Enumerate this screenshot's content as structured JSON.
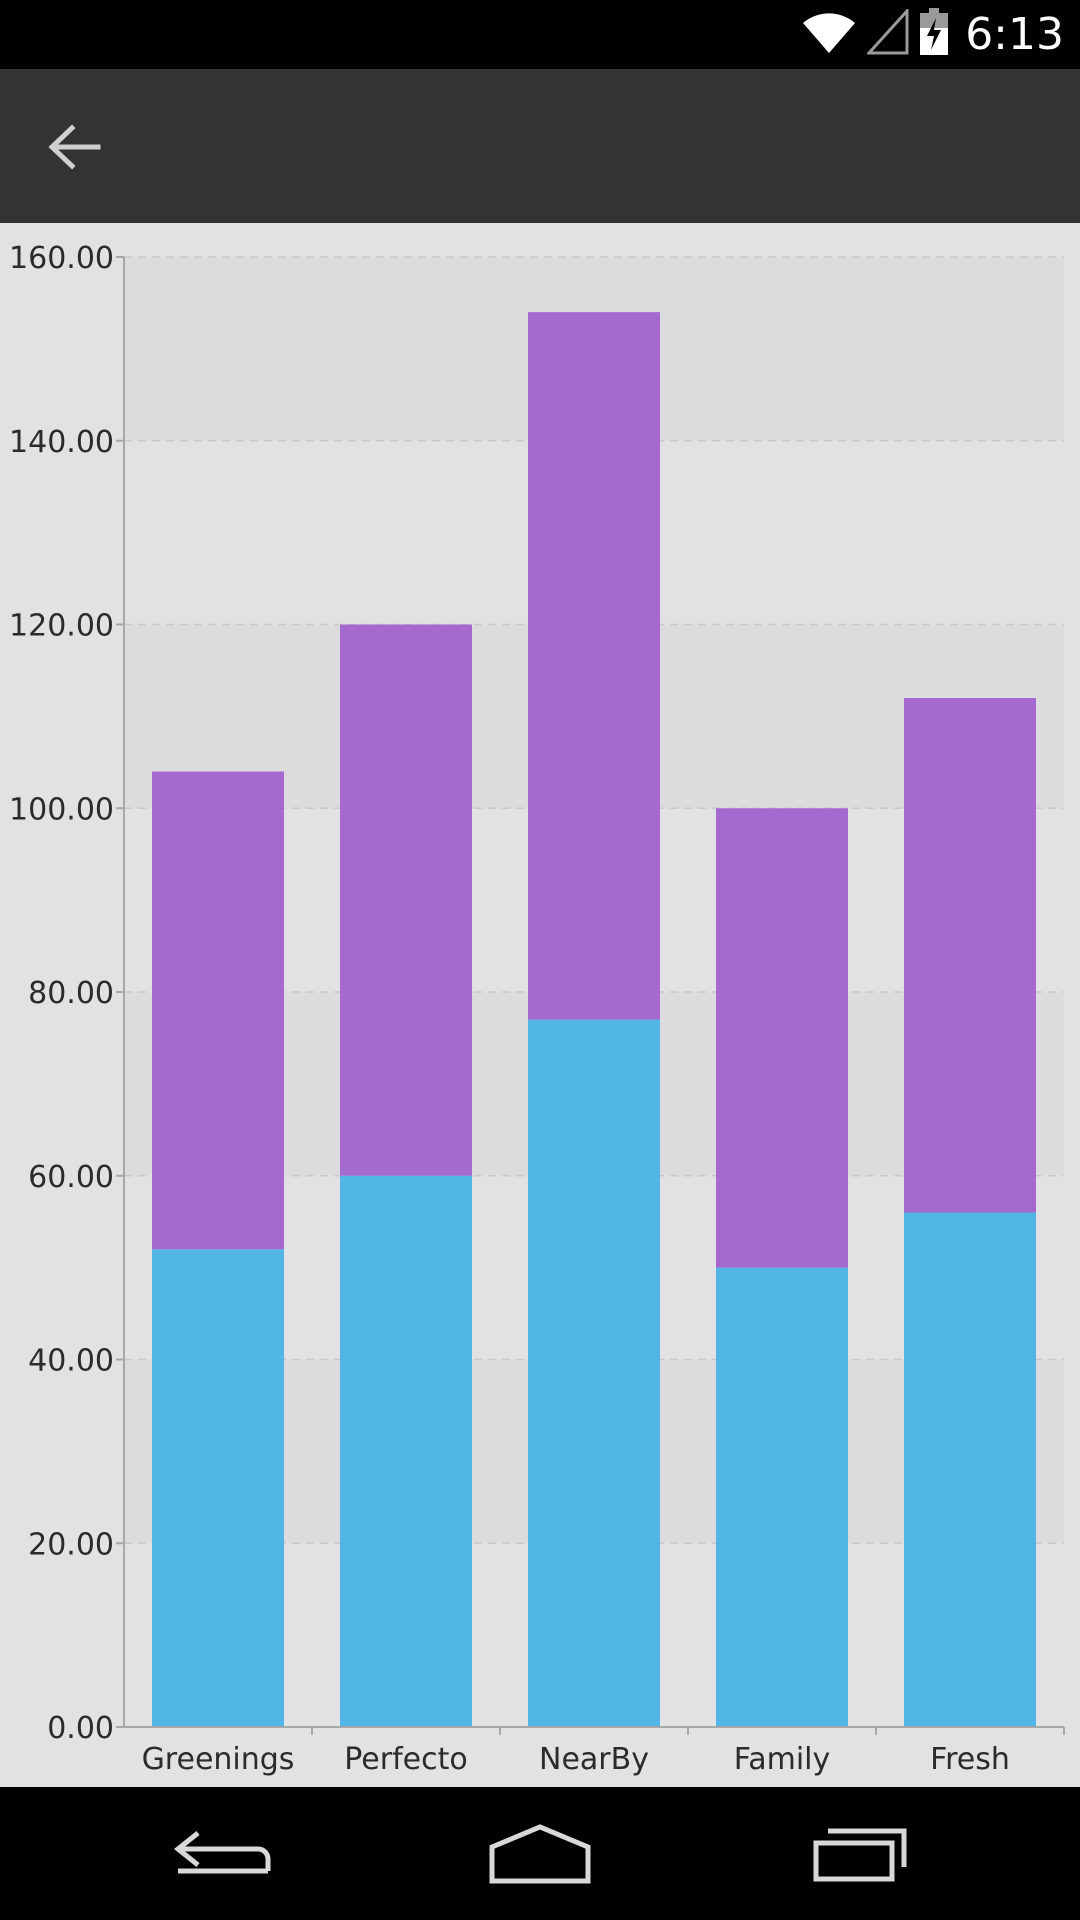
{
  "status_bar": {
    "time": "6:13",
    "icons": [
      "wifi-icon",
      "signal-icon",
      "battery-charging-icon"
    ]
  },
  "app_bar": {
    "back_icon": "arrow-left-icon"
  },
  "nav_bar": {
    "icons": [
      "back-nav-icon",
      "home-nav-icon",
      "recents-nav-icon"
    ]
  },
  "chart_data": {
    "type": "bar",
    "stacked": true,
    "categories": [
      "Greenings",
      "Perfecto",
      "NearBy",
      "Family",
      "Fresh"
    ],
    "series": [
      {
        "values": [
          52,
          60,
          77,
          50,
          56
        ],
        "color": "#51b5e6"
      },
      {
        "values": [
          52,
          60,
          77,
          50,
          56
        ],
        "color": "#a569cf"
      }
    ],
    "ylim": [
      0,
      160
    ],
    "yticks": [
      "0.00",
      "20.00",
      "40.00",
      "60.00",
      "80.00",
      "100.00",
      "120.00",
      "140.00",
      "160.00"
    ],
    "grid": true,
    "legend": false,
    "colors": {
      "band_dark": "#dcdcdc",
      "band_light": "#e2e2e2",
      "axis": "#a8a8a8",
      "grid": "#c9c9c9"
    }
  }
}
